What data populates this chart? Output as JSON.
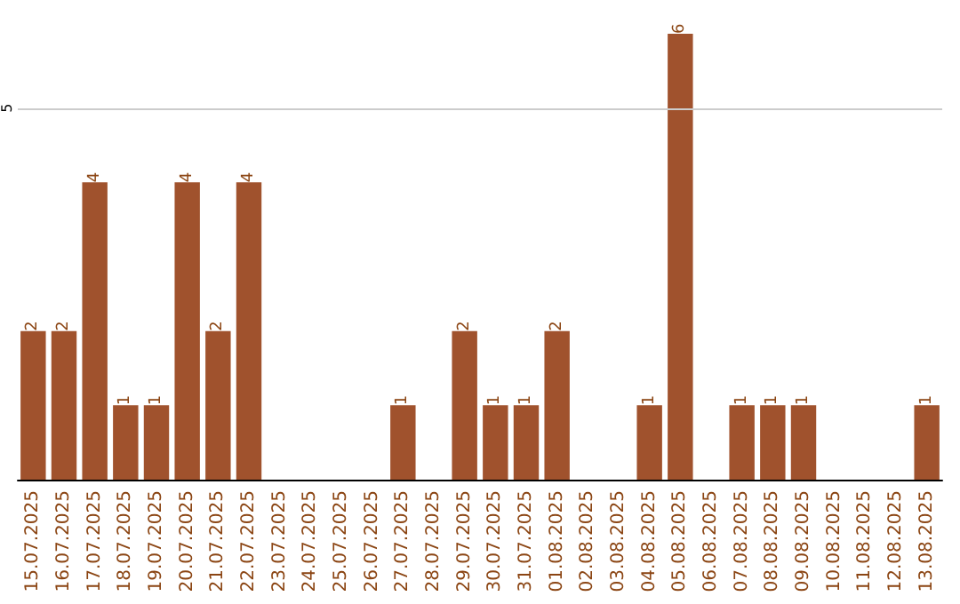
{
  "chart_data": {
    "type": "bar",
    "categories": [
      "15.07.2025",
      "16.07.2025",
      "17.07.2025",
      "18.07.2025",
      "19.07.2025",
      "20.07.2025",
      "21.07.2025",
      "22.07.2025",
      "23.07.2025",
      "24.07.2025",
      "25.07.2025",
      "26.07.2025",
      "27.07.2025",
      "28.07.2025",
      "29.07.2025",
      "30.07.2025",
      "31.07.2025",
      "01.08.2025",
      "02.08.2025",
      "03.08.2025",
      "04.08.2025",
      "05.08.2025",
      "06.08.2025",
      "07.08.2025",
      "08.08.2025",
      "09.08.2025",
      "10.08.2025",
      "11.08.2025",
      "12.08.2025",
      "13.08.2025"
    ],
    "values": [
      2,
      2,
      4,
      1,
      1,
      4,
      2,
      4,
      null,
      null,
      null,
      null,
      1,
      null,
      2,
      1,
      1,
      2,
      null,
      null,
      1,
      6,
      null,
      1,
      1,
      1,
      null,
      null,
      null,
      1
    ],
    "color": "#a0522d",
    "ylim": [
      0,
      6
    ],
    "yticks": [
      5
    ],
    "grid": "y",
    "data_labels": true
  }
}
